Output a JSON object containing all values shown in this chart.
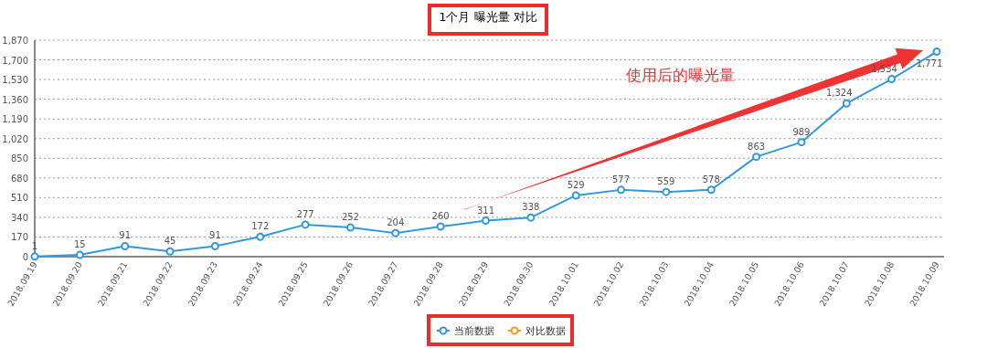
{
  "chart_data": {
    "type": "line",
    "title": "1个月  曝光量  对比",
    "categories": [
      "2018.09.19",
      "2018.09.20",
      "2018.09.21",
      "2018.09.22",
      "2018.09.23",
      "2018.09.24",
      "2018.09.25",
      "2018.09.26",
      "2018.09.27",
      "2018.09.28",
      "2018.09.29",
      "2018.09.30",
      "2018.10.01",
      "2018.10.02",
      "2018.10.03",
      "2018.10.04",
      "2018.10.05",
      "2018.10.06",
      "2018.10.07",
      "2018.10.08",
      "2018.10.09"
    ],
    "series": [
      {
        "name": "当前数据",
        "color": "#3398db",
        "values": [
          1,
          15,
          91,
          45,
          91,
          172,
          277,
          252,
          204,
          260,
          311,
          338,
          529,
          577,
          559,
          578,
          863,
          989,
          1324,
          1534,
          1771
        ],
        "value_labels": [
          "1",
          "15",
          "91",
          "45",
          "91",
          "172",
          "277",
          "252",
          "204",
          "260",
          "311",
          "338",
          "529",
          "577",
          "559",
          "578",
          "863",
          "989",
          "1,324",
          "1,534",
          "1,771"
        ]
      },
      {
        "name": "对比数据",
        "color": "#f39c12",
        "values": [
          null,
          null,
          null,
          null,
          null,
          null,
          null,
          null,
          null,
          null,
          null,
          null,
          null,
          null,
          null,
          null,
          null,
          null,
          null,
          null,
          null
        ]
      }
    ],
    "ylim": [
      0,
      1870
    ],
    "yticks": [
      {
        "value": 0,
        "label": "0"
      },
      {
        "value": 170,
        "label": "170"
      },
      {
        "value": 340,
        "label": "340"
      },
      {
        "value": 510,
        "label": "510"
      },
      {
        "value": 680,
        "label": "680"
      },
      {
        "value": 850,
        "label": "850"
      },
      {
        "value": 1020,
        "label": "1,020"
      },
      {
        "value": 1190,
        "label": "1,190"
      },
      {
        "value": 1360,
        "label": "1,360"
      },
      {
        "value": 1530,
        "label": "1,530"
      },
      {
        "value": 1700,
        "label": "1,700"
      },
      {
        "value": 1870,
        "label": "1,870"
      }
    ],
    "grid": "y",
    "legend": "bottom",
    "marker": "circle",
    "line_style": "solid",
    "annotations": [
      "使用后的曝光量"
    ]
  }
}
